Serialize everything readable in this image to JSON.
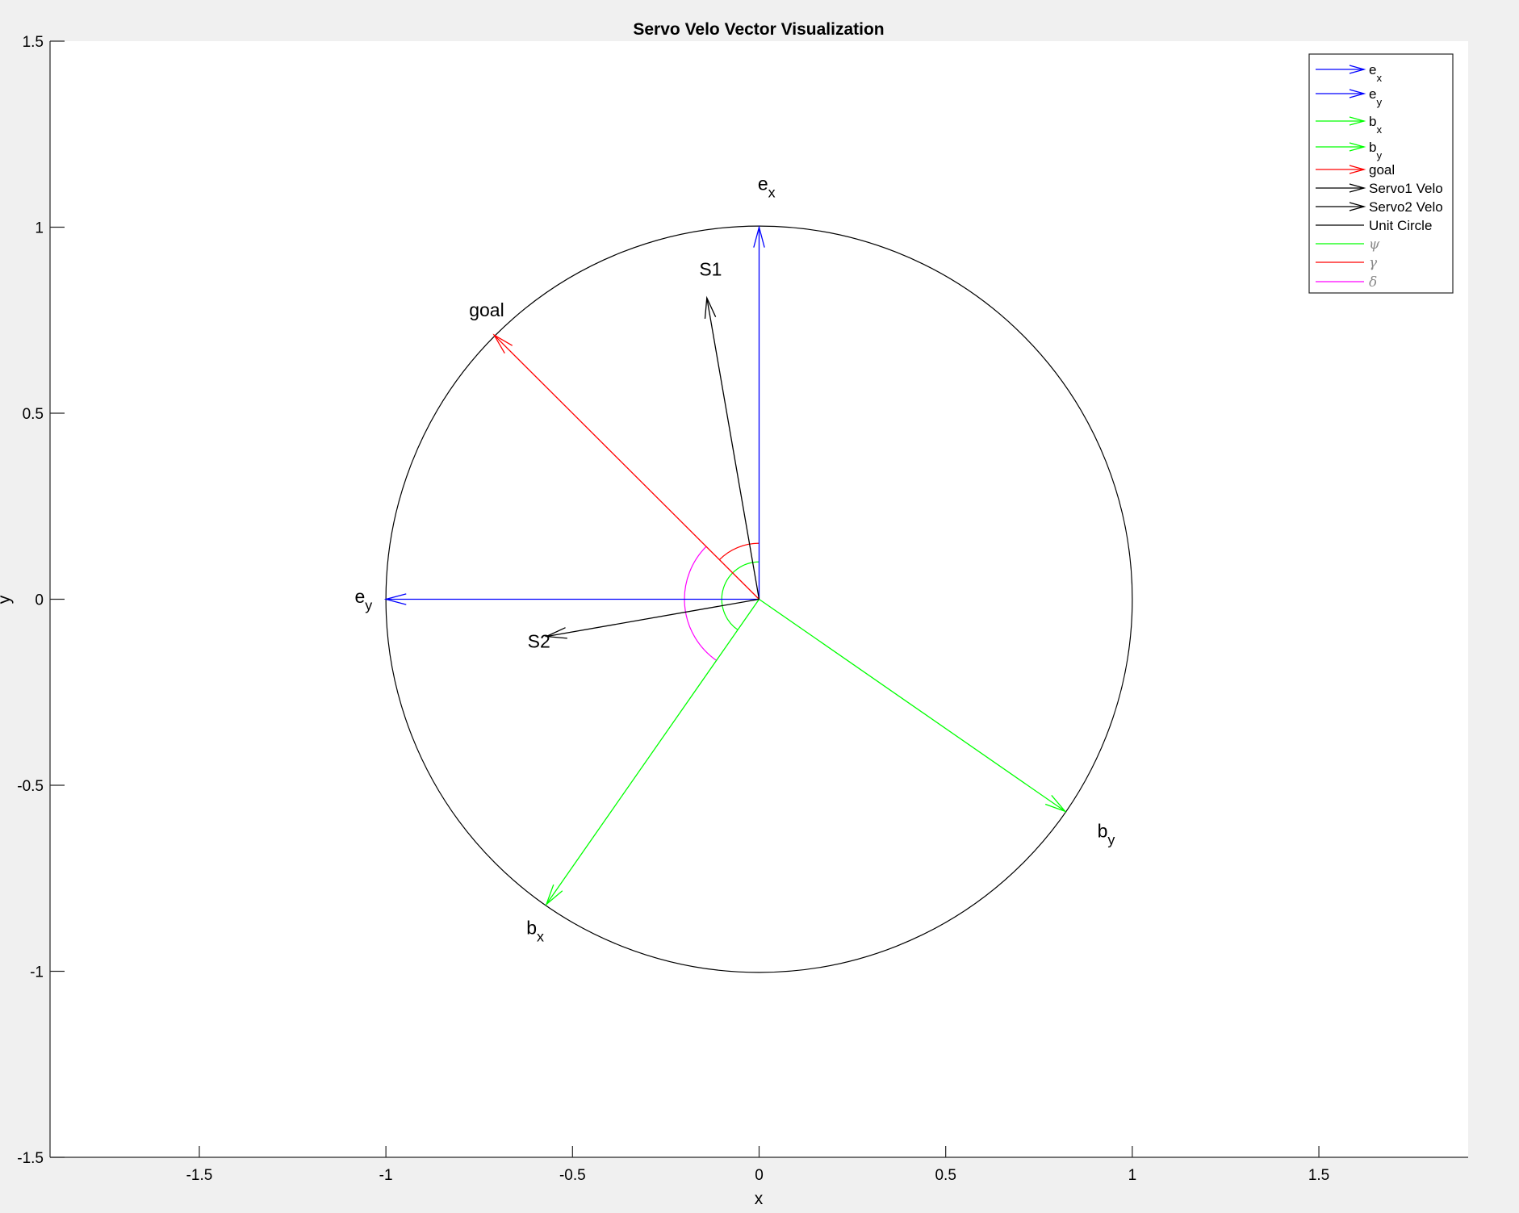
{
  "chart_data": {
    "type": "vector-plot",
    "title": "Servo Velo Vector Visualization",
    "xlabel": "x",
    "ylabel": "y",
    "xlim": [
      -1.9,
      1.9
    ],
    "ylim": [
      -1.5,
      1.5
    ],
    "xticks": [
      -1.5,
      -1,
      -0.5,
      0,
      0.5,
      1,
      1.5
    ],
    "xtick_labels": [
      "-1.5",
      "-1",
      "-0.5",
      "0",
      "0.5",
      "1",
      "1.5"
    ],
    "yticks": [
      -1.5,
      -1,
      -0.5,
      0,
      0.5,
      1,
      1.5
    ],
    "ytick_labels": [
      "-1.5",
      "-1",
      "-0.5",
      "0",
      "0.5",
      "1",
      "1.5"
    ],
    "grid": false,
    "legend_position": "top-right",
    "vectors": [
      {
        "id": "ex",
        "legend_main": "e",
        "legend_sub": "x",
        "label_main": "e",
        "label_sub": "x",
        "x": 0,
        "y": 1,
        "color": "#0000ff",
        "label_at": [
          0.02,
          1.1
        ]
      },
      {
        "id": "ey",
        "legend_main": "e",
        "legend_sub": "y",
        "label_main": "e",
        "label_sub": "y",
        "x": -1,
        "y": 0,
        "color": "#0000ff",
        "label_at": [
          -1.06,
          -0.01
        ]
      },
      {
        "id": "bx",
        "legend_main": "b",
        "legend_sub": "x",
        "label_main": "b",
        "label_sub": "x",
        "x": -0.57,
        "y": -0.82,
        "color": "#00ff00",
        "label_at": [
          -0.6,
          -0.9
        ]
      },
      {
        "id": "by",
        "legend_main": "b",
        "legend_sub": "y",
        "label_main": "b",
        "label_sub": "y",
        "x": 0.82,
        "y": -0.57,
        "color": "#00ff00",
        "label_at": [
          0.93,
          -0.64
        ]
      },
      {
        "id": "goal",
        "legend_main": "goal",
        "legend_sub": "",
        "label_main": "goal",
        "label_sub": "",
        "x": -0.71,
        "y": 0.71,
        "color": "#ff0000",
        "label_at": [
          -0.73,
          0.76
        ]
      },
      {
        "id": "s1",
        "legend_main": "Servo1 Velo",
        "legend_sub": "",
        "label_main": "S1",
        "label_sub": "",
        "x": -0.14,
        "y": 0.81,
        "color": "#000000",
        "label_at": [
          -0.13,
          0.87
        ]
      },
      {
        "id": "s2",
        "legend_main": "Servo2 Velo",
        "legend_sub": "",
        "label_main": "S2",
        "label_sub": "",
        "x": -0.57,
        "y": -0.1,
        "color": "#000000",
        "label_at": [
          -0.59,
          -0.13
        ]
      }
    ],
    "unit_circle": {
      "legend": "Unit Circle",
      "radius": 1,
      "color": "#000000"
    },
    "angle_arcs": [
      {
        "id": "psi",
        "legend": "ψ",
        "color": "#00ff00",
        "radius": 0.1,
        "from_deg": 90,
        "to_deg": 235
      },
      {
        "id": "gamma",
        "legend": "γ",
        "color": "#ff0000",
        "radius": 0.15,
        "from_deg": 90,
        "to_deg": 135
      },
      {
        "id": "delta",
        "legend": "δ",
        "color": "#ff00ff",
        "radius": 0.2,
        "from_deg": 135,
        "to_deg": 235
      }
    ]
  }
}
